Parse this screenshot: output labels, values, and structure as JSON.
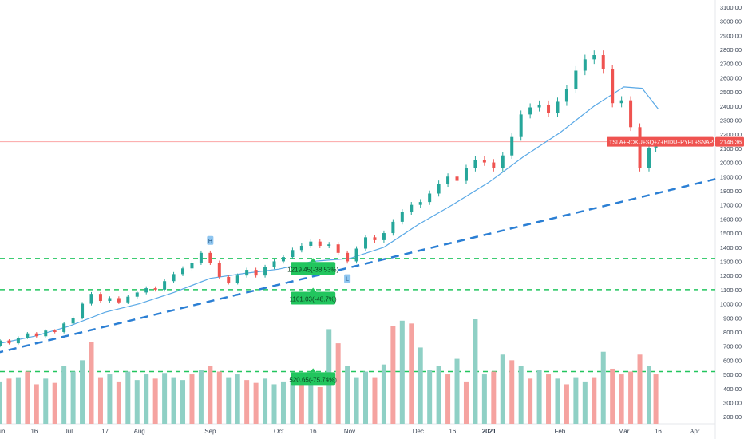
{
  "chart_data": {
    "type": "candlestick",
    "instrument_label": "TSLA+ROKU+SQ+Z+BIDU+PYPL+SNAP+FLGT+RE...",
    "last_price_label": "2146.36",
    "last_price": 2146.36,
    "ylim": [
      150,
      3150
    ],
    "y_ticks": [
      200,
      300,
      400,
      500,
      600,
      700,
      800,
      900,
      1000,
      1100,
      1200,
      1300,
      1400,
      1500,
      1600,
      1700,
      1800,
      1900,
      2000,
      2100,
      2200,
      2300,
      2400,
      2500,
      2600,
      2700,
      2800,
      2900,
      3000,
      3100
    ],
    "y_tick_labels": [
      "200.00",
      "300.00",
      "400.00",
      "500.00",
      "600.00",
      "700.00",
      "800.00",
      "900.00",
      "1000.00",
      "1100.00",
      "1200.00",
      "1300.00",
      "1400.00",
      "1500.00",
      "1600.00",
      "1700.00",
      "1800.00",
      "1900.00",
      "2000.00",
      "2100.00",
      "2200.00",
      "2300.00",
      "2400.00",
      "2500.00",
      "2600.00",
      "2700.00",
      "2800.00",
      "2900.00",
      "3000.00",
      "3100.00"
    ],
    "x_labels": [
      "Jun",
      "16",
      "Jul",
      "17",
      "Aug",
      "Sep",
      "Oct",
      "16",
      "Nov",
      "Dec",
      "16",
      "2021",
      "Feb",
      "Mar",
      "16",
      "Apr"
    ],
    "x_label_bold": [
      false,
      false,
      false,
      false,
      false,
      false,
      false,
      false,
      false,
      false,
      false,
      true,
      false,
      false,
      false,
      false
    ],
    "x_range": [
      "2020-06-01",
      "2021-04-10"
    ],
    "x_dates": [
      "2020-06-01",
      "2020-06-16",
      "2020-07-01",
      "2020-07-17",
      "2020-08-01",
      "2020-09-01",
      "2020-10-01",
      "2020-10-16",
      "2020-11-01",
      "2020-12-01",
      "2020-12-16",
      "2021-01-01",
      "2021-02-01",
      "2021-03-01",
      "2021-03-16",
      "2021-04-01"
    ],
    "horizontal_levels": [
      {
        "value": 1320,
        "style": "dashed",
        "color": "#22c55e"
      },
      {
        "value": 1100,
        "style": "dashed",
        "color": "#22c55e"
      },
      {
        "value": 520,
        "style": "dashed",
        "color": "#22c55e"
      },
      {
        "value": 2146.36,
        "style": "solid",
        "color": "#fca5a5"
      }
    ],
    "trendline": {
      "start": [
        "2020-05-30",
        650
      ],
      "end": [
        "2021-04-12",
        1890
      ],
      "color": "#2b7fd4",
      "style": "dashed"
    },
    "callouts": [
      {
        "text": "1219.45(-38.53%)",
        "date": "2020-10-16",
        "value": 1250,
        "color": "#22c55e"
      },
      {
        "text": "1101.03(-48.7%)",
        "date": "2020-10-16",
        "value": 1040,
        "color": "#22c55e"
      },
      {
        "text": "520.65(-75.74%)",
        "date": "2020-10-16",
        "value": 470,
        "color": "#22c55e"
      }
    ],
    "markers": [
      {
        "text": "H",
        "date": "2020-09-01",
        "value": 1445
      },
      {
        "text": "L",
        "date": "2020-10-31",
        "value": 1175
      }
    ],
    "colors": {
      "up": "#26a69a",
      "down": "#ef5350",
      "ma": "#5aa9e6",
      "volume_up": "#8fd0c5",
      "volume_down": "#f5a3a0"
    },
    "ma_series": [
      [
        "2020-06-01",
        720
      ],
      [
        "2020-06-16",
        770
      ],
      [
        "2020-07-01",
        840
      ],
      [
        "2020-07-17",
        940
      ],
      [
        "2020-08-01",
        1000
      ],
      [
        "2020-08-16",
        1080
      ],
      [
        "2020-09-01",
        1180
      ],
      [
        "2020-09-16",
        1215
      ],
      [
        "2020-10-01",
        1245
      ],
      [
        "2020-10-16",
        1300
      ],
      [
        "2020-11-01",
        1320
      ],
      [
        "2020-11-16",
        1400
      ],
      [
        "2020-12-01",
        1560
      ],
      [
        "2020-12-16",
        1700
      ],
      [
        "2021-01-01",
        1860
      ],
      [
        "2021-01-16",
        2040
      ],
      [
        "2021-02-01",
        2210
      ],
      [
        "2021-02-16",
        2400
      ],
      [
        "2021-03-01",
        2535
      ],
      [
        "2021-03-09",
        2525
      ],
      [
        "2021-03-16",
        2380
      ]
    ],
    "candles": [
      [
        "2020-06-01",
        700,
        740
      ],
      [
        "2020-06-05",
        740,
        720
      ],
      [
        "2020-06-09",
        720,
        760
      ],
      [
        "2020-06-13",
        760,
        790
      ],
      [
        "2020-06-17",
        790,
        770
      ],
      [
        "2020-06-21",
        770,
        810
      ],
      [
        "2020-06-25",
        810,
        800
      ],
      [
        "2020-06-29",
        800,
        860
      ],
      [
        "2020-07-03",
        860,
        900
      ],
      [
        "2020-07-07",
        900,
        1000
      ],
      [
        "2020-07-11",
        1000,
        1070
      ],
      [
        "2020-07-15",
        1070,
        1020
      ],
      [
        "2020-07-19",
        1020,
        1040
      ],
      [
        "2020-07-23",
        1040,
        1010
      ],
      [
        "2020-07-27",
        1010,
        1050
      ],
      [
        "2020-07-31",
        1050,
        1080
      ],
      [
        "2020-08-04",
        1080,
        1110
      ],
      [
        "2020-08-08",
        1110,
        1100
      ],
      [
        "2020-08-12",
        1100,
        1160
      ],
      [
        "2020-08-16",
        1160,
        1210
      ],
      [
        "2020-08-20",
        1210,
        1250
      ],
      [
        "2020-08-24",
        1250,
        1290
      ],
      [
        "2020-08-28",
        1290,
        1360
      ],
      [
        "2020-09-01",
        1360,
        1290
      ],
      [
        "2020-09-05",
        1290,
        1190
      ],
      [
        "2020-09-09",
        1190,
        1150
      ],
      [
        "2020-09-13",
        1150,
        1200
      ],
      [
        "2020-09-17",
        1200,
        1240
      ],
      [
        "2020-09-21",
        1240,
        1200
      ],
      [
        "2020-09-25",
        1200,
        1260
      ],
      [
        "2020-09-29",
        1260,
        1300
      ],
      [
        "2020-10-03",
        1300,
        1330
      ],
      [
        "2020-10-07",
        1330,
        1380
      ],
      [
        "2020-10-11",
        1380,
        1410
      ],
      [
        "2020-10-15",
        1410,
        1440
      ],
      [
        "2020-10-19",
        1440,
        1410
      ],
      [
        "2020-10-23",
        1410,
        1420
      ],
      [
        "2020-10-27",
        1420,
        1360
      ],
      [
        "2020-10-31",
        1360,
        1300
      ],
      [
        "2020-11-04",
        1300,
        1390
      ],
      [
        "2020-11-08",
        1390,
        1470
      ],
      [
        "2020-11-12",
        1470,
        1450
      ],
      [
        "2020-11-16",
        1450,
        1500
      ],
      [
        "2020-11-20",
        1500,
        1580
      ],
      [
        "2020-11-24",
        1580,
        1650
      ],
      [
        "2020-11-28",
        1650,
        1700
      ],
      [
        "2020-12-02",
        1700,
        1720
      ],
      [
        "2020-12-06",
        1720,
        1780
      ],
      [
        "2020-12-10",
        1780,
        1850
      ],
      [
        "2020-12-14",
        1850,
        1900
      ],
      [
        "2020-12-18",
        1900,
        1870
      ],
      [
        "2020-12-22",
        1870,
        1960
      ],
      [
        "2020-12-26",
        1960,
        2020
      ],
      [
        "2020-12-30",
        2020,
        2000
      ],
      [
        "2021-01-03",
        2000,
        1960
      ],
      [
        "2021-01-07",
        1960,
        2050
      ],
      [
        "2021-01-11",
        2050,
        2180
      ],
      [
        "2021-01-15",
        2180,
        2340
      ],
      [
        "2021-01-19",
        2340,
        2390
      ],
      [
        "2021-01-23",
        2390,
        2410
      ],
      [
        "2021-01-27",
        2410,
        2350
      ],
      [
        "2021-01-31",
        2350,
        2430
      ],
      [
        "2021-02-04",
        2430,
        2520
      ],
      [
        "2021-02-08",
        2520,
        2650
      ],
      [
        "2021-02-12",
        2650,
        2730
      ],
      [
        "2021-02-16",
        2730,
        2760
      ],
      [
        "2021-02-20",
        2760,
        2660
      ],
      [
        "2021-02-24",
        2660,
        2420
      ],
      [
        "2021-02-28",
        2420,
        2440
      ],
      [
        "2021-03-04",
        2440,
        2250
      ],
      [
        "2021-03-08",
        2250,
        1960
      ],
      [
        "2021-03-12",
        1960,
        2100
      ],
      [
        "2021-03-15",
        2100,
        2146.36
      ]
    ],
    "volume_bars": [
      [
        "2020-06-01",
        450,
        "up"
      ],
      [
        "2020-06-05",
        470,
        "down"
      ],
      [
        "2020-06-09",
        480,
        "up"
      ],
      [
        "2020-06-13",
        520,
        "down"
      ],
      [
        "2020-06-17",
        430,
        "down"
      ],
      [
        "2020-06-21",
        470,
        "up"
      ],
      [
        "2020-06-25",
        440,
        "down"
      ],
      [
        "2020-06-29",
        560,
        "up"
      ],
      [
        "2020-07-03",
        520,
        "up"
      ],
      [
        "2020-07-07",
        600,
        "up"
      ],
      [
        "2020-07-11",
        730,
        "down"
      ],
      [
        "2020-07-15",
        480,
        "down"
      ],
      [
        "2020-07-19",
        500,
        "up"
      ],
      [
        "2020-07-23",
        450,
        "down"
      ],
      [
        "2020-07-27",
        520,
        "up"
      ],
      [
        "2020-07-31",
        460,
        "up"
      ],
      [
        "2020-08-04",
        500,
        "up"
      ],
      [
        "2020-08-08",
        470,
        "down"
      ],
      [
        "2020-08-12",
        510,
        "up"
      ],
      [
        "2020-08-16",
        480,
        "up"
      ],
      [
        "2020-08-20",
        460,
        "up"
      ],
      [
        "2020-08-24",
        500,
        "down"
      ],
      [
        "2020-08-28",
        530,
        "up"
      ],
      [
        "2020-09-01",
        560,
        "down"
      ],
      [
        "2020-09-05",
        520,
        "down"
      ],
      [
        "2020-09-09",
        480,
        "up"
      ],
      [
        "2020-09-13",
        500,
        "up"
      ],
      [
        "2020-09-17",
        460,
        "down"
      ],
      [
        "2020-09-21",
        440,
        "down"
      ],
      [
        "2020-09-25",
        470,
        "up"
      ],
      [
        "2020-09-29",
        430,
        "up"
      ],
      [
        "2020-10-03",
        450,
        "up"
      ],
      [
        "2020-10-07",
        480,
        "up"
      ],
      [
        "2020-10-11",
        430,
        "down"
      ],
      [
        "2020-10-15",
        470,
        "up"
      ],
      [
        "2020-10-19",
        410,
        "down"
      ],
      [
        "2020-10-23",
        820,
        "up"
      ],
      [
        "2020-10-27",
        720,
        "down"
      ],
      [
        "2020-10-31",
        560,
        "up"
      ],
      [
        "2020-11-04",
        480,
        "up"
      ],
      [
        "2020-11-08",
        520,
        "up"
      ],
      [
        "2020-11-12",
        480,
        "down"
      ],
      [
        "2020-11-16",
        570,
        "up"
      ],
      [
        "2020-11-20",
        840,
        "down"
      ],
      [
        "2020-11-24",
        880,
        "up"
      ],
      [
        "2020-11-28",
        860,
        "down"
      ],
      [
        "2020-12-02",
        690,
        "up"
      ],
      [
        "2020-12-06",
        530,
        "up"
      ],
      [
        "2020-12-10",
        560,
        "up"
      ],
      [
        "2020-12-14",
        500,
        "down"
      ],
      [
        "2020-12-18",
        610,
        "up"
      ],
      [
        "2020-12-22",
        450,
        "down"
      ],
      [
        "2020-12-26",
        890,
        "up"
      ],
      [
        "2020-12-30",
        500,
        "up"
      ],
      [
        "2021-01-03",
        520,
        "down"
      ],
      [
        "2021-01-07",
        640,
        "up"
      ],
      [
        "2021-01-11",
        600,
        "down"
      ],
      [
        "2021-01-15",
        560,
        "up"
      ],
      [
        "2021-01-19",
        470,
        "down"
      ],
      [
        "2021-01-23",
        530,
        "up"
      ],
      [
        "2021-01-27",
        500,
        "down"
      ],
      [
        "2021-01-31",
        470,
        "up"
      ],
      [
        "2021-02-04",
        430,
        "down"
      ],
      [
        "2021-02-08",
        480,
        "up"
      ],
      [
        "2021-02-12",
        450,
        "up"
      ],
      [
        "2021-02-16",
        480,
        "down"
      ],
      [
        "2021-02-20",
        660,
        "up"
      ],
      [
        "2021-02-24",
        540,
        "down"
      ],
      [
        "2021-02-28",
        500,
        "down"
      ],
      [
        "2021-03-04",
        520,
        "down"
      ],
      [
        "2021-03-08",
        640,
        "down"
      ],
      [
        "2021-03-12",
        560,
        "up"
      ],
      [
        "2021-03-15",
        500,
        "down"
      ]
    ]
  }
}
